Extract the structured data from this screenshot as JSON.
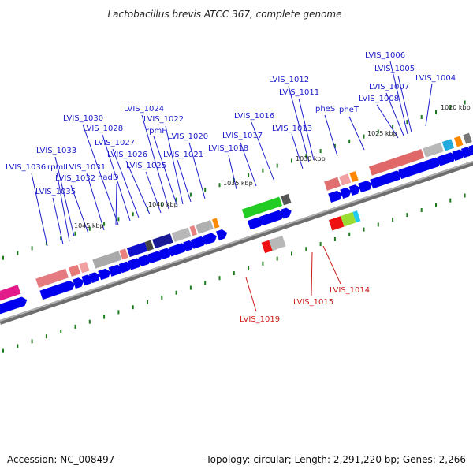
{
  "title": "Lactobacillus brevis ATCC 367, complete genome",
  "footer": {
    "accession": "Accession: NC_008497",
    "info": "Topology: circular; Length: 2,291,220 bp; Genes: 2,266"
  },
  "colors": {
    "forward_label": "#1c1ccc",
    "reverse_label": "#cc1c1c",
    "backbone": "#8c8c8c",
    "cds": "#0000ee"
  },
  "ruler": [
    "1020 kbp",
    "1025 kbp",
    "1030 kbp",
    "1035 kbp",
    "1040 kbp",
    "1045 kbp"
  ],
  "forward_genes": [
    "LVIS_1004",
    "LVIS_1005",
    "LVIS_1006",
    "LVIS_1007",
    "LVIS_1008",
    "pheT",
    "pheS",
    "LVIS_1011",
    "LVIS_1012",
    "LVIS_1013",
    "LVIS_1016",
    "LVIS_1017",
    "LVIS_1018",
    "LVIS_1020",
    "LVIS_1021",
    "LVIS_1022",
    "rpmF",
    "LVIS_1024",
    "LVIS_1025",
    "LVIS_1026",
    "LVIS_1027",
    "LVIS_1028",
    "LVIS_1030",
    "nadD",
    "LVIS_1031",
    "LVIS_1032",
    "LVIS_1033",
    "rpmI",
    "LVIS_1036",
    "LVIS_1035"
  ],
  "reverse_genes": [
    "LVIS_1014",
    "LVIS_1015",
    "LVIS_1019"
  ]
}
